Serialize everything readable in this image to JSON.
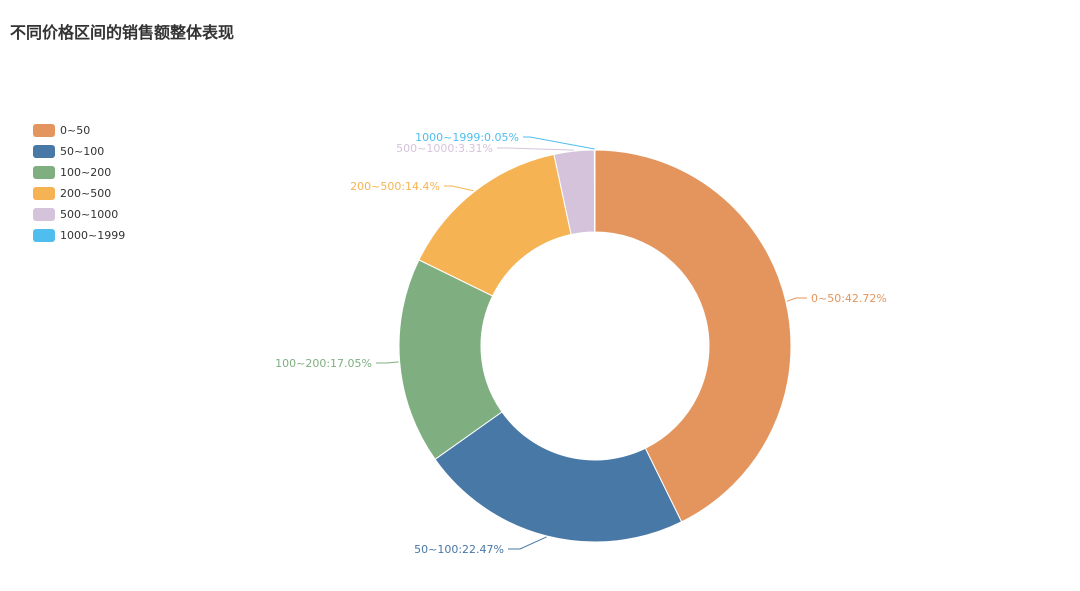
{
  "chart_data": {
    "type": "pie",
    "title": "不同价格区间的销售额整体表现",
    "categories": [
      "0~50",
      "50~100",
      "100~200",
      "200~500",
      "500~1000",
      "1000~1999"
    ],
    "values": [
      42.72,
      22.47,
      17.05,
      14.4,
      3.31,
      0.05
    ],
    "unit": "%",
    "data_labels": [
      "0~50:42.72%",
      "50~100:22.47%",
      "100~200:17.05%",
      "200~500:14.4%",
      "500~1000:3.31%",
      "1000~1999:0.05%"
    ],
    "colors": [
      "#E3955D",
      "#4878A6",
      "#7FAF80",
      "#F5B353",
      "#D5C3DB",
      "#4FBEEF"
    ],
    "legend_position": "top-left",
    "style": "donut"
  }
}
